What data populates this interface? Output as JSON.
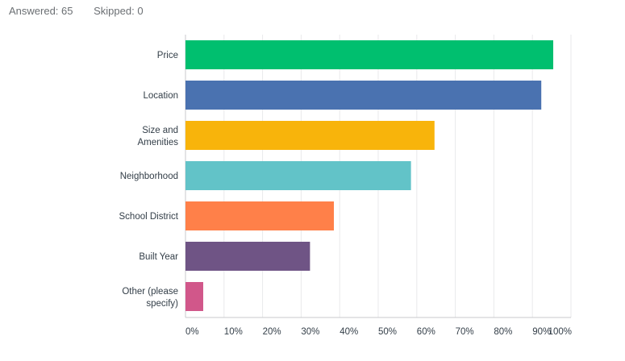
{
  "summary": {
    "answered": "Answered: 65",
    "skipped": "Skipped: 0"
  },
  "chart_data": {
    "type": "bar",
    "orientation": "horizontal",
    "categories": [
      [
        "Price"
      ],
      [
        "Location"
      ],
      [
        "Size and",
        "Amenities"
      ],
      [
        "Neighborhood"
      ],
      [
        "School District"
      ],
      [
        "Built Year"
      ],
      [
        "Other (please",
        "specify)"
      ]
    ],
    "values": [
      95.4,
      92.3,
      64.6,
      58.5,
      38.5,
      32.3,
      4.6
    ],
    "colors": [
      "#00bf6f",
      "#4a72b0",
      "#f8b40b",
      "#62c3c8",
      "#ff8049",
      "#6f5485",
      "#d1578a"
    ],
    "xlim": [
      0,
      100
    ],
    "xticks": [
      "0%",
      "10%",
      "20%",
      "30%",
      "40%",
      "50%",
      "60%",
      "70%",
      "80%",
      "90%",
      "100%"
    ],
    "grid": true
  }
}
